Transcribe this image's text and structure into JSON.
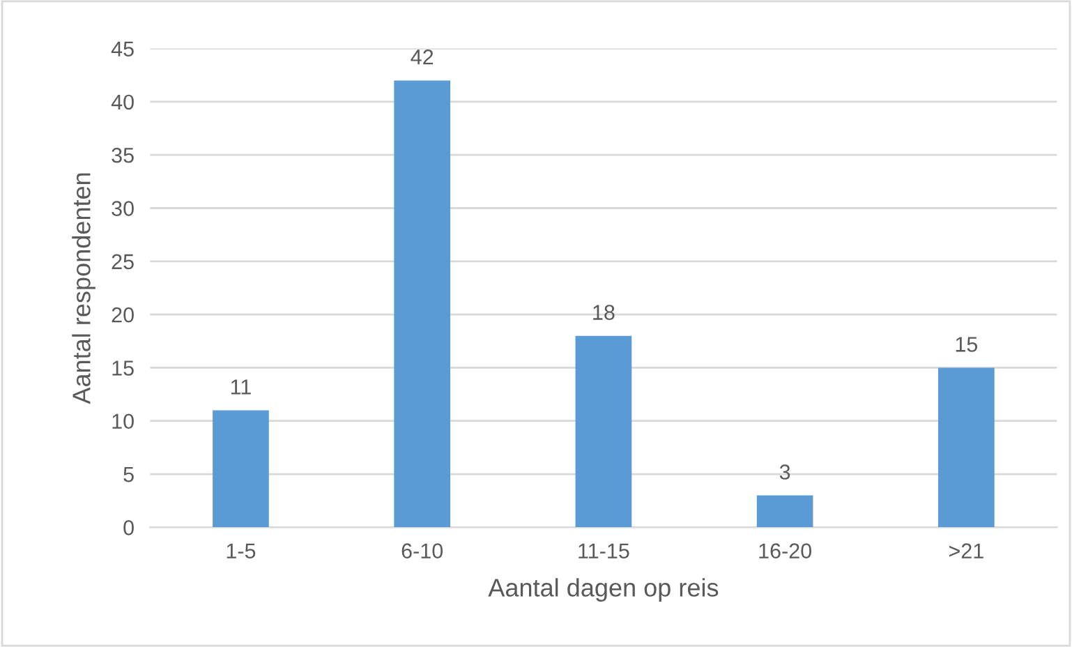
{
  "chart_data": {
    "type": "bar",
    "xlabel": "Aantal dagen op reis",
    "ylabel": "Aantal respondenten",
    "categories": [
      "1-5",
      "6-10",
      "11-15",
      "16-20",
      ">21"
    ],
    "values": [
      11,
      42,
      18,
      3,
      15
    ],
    "color": "#5b9bd5",
    "ylim": [
      0,
      45
    ],
    "yticks": [
      0,
      5,
      10,
      15,
      20,
      25,
      30,
      35,
      40,
      45
    ],
    "grid": "y",
    "data_labels": true
  }
}
